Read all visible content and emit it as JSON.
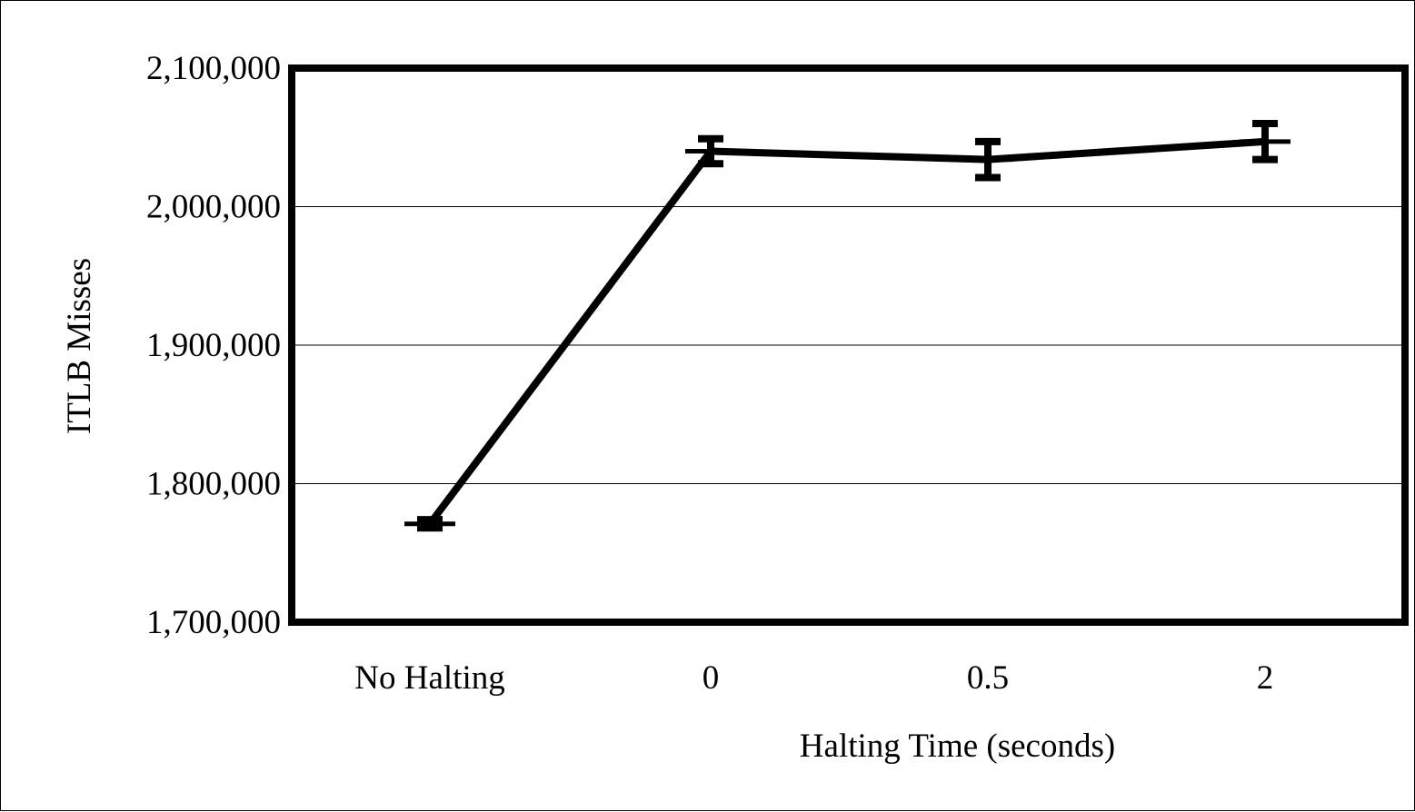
{
  "chart_data": {
    "type": "line",
    "categories": [
      "No Halting",
      "0",
      "0.5",
      "2"
    ],
    "series": [
      {
        "values": [
          1771000,
          2040000,
          2034000,
          2047000
        ],
        "error": [
          3000,
          9000,
          13000,
          13000
        ]
      }
    ],
    "xlabel": "Halting Time (seconds)",
    "ylabel": "ITLB Misses",
    "ylim": [
      1700000,
      2100000
    ],
    "yticks": [
      1700000,
      1800000,
      1900000,
      2000000,
      2100000
    ],
    "ytick_labels": [
      "1,700,000",
      "1,800,000",
      "1,900,000",
      "2,000,000",
      "2,100,000"
    ],
    "grid": true,
    "legend": "none",
    "line_color": "#000000"
  }
}
